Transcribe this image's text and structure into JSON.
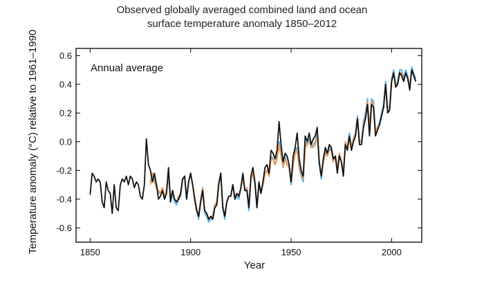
{
  "chart_data": {
    "type": "line",
    "title_line1": "Observed globally averaged combined land and ocean",
    "title_line2": "surface temperature anomaly 1850–2012",
    "xlabel": "Year",
    "ylabel": "Temperature anomaly (°C) relative to 1961–1990",
    "annotation": "Annual average",
    "xlim": [
      1843,
      2015
    ],
    "ylim": [
      -0.7,
      0.65
    ],
    "x_ticks": [
      1850,
      1900,
      1950,
      2000
    ],
    "y_ticks": [
      -0.6,
      -0.4,
      -0.2,
      0.0,
      0.2,
      0.4,
      0.6
    ],
    "y_tick_labels": [
      "-0.6",
      "-0.4",
      "-0.2",
      "0.0",
      "0.2",
      "0.4",
      "0.6"
    ],
    "grid": false,
    "series": [
      {
        "color": "#5ab4e5",
        "x_start": 1880,
        "values": [
          -0.28,
          -0.22,
          -0.26,
          -0.3,
          -0.36,
          -0.36,
          -0.34,
          -0.4,
          -0.36,
          -0.2,
          -0.42,
          -0.36,
          -0.42,
          -0.44,
          -0.4,
          -0.38,
          -0.26,
          -0.24,
          -0.4,
          -0.28,
          -0.22,
          -0.3,
          -0.4,
          -0.48,
          -0.54,
          -0.42,
          -0.34,
          -0.5,
          -0.52,
          -0.56,
          -0.54,
          -0.54,
          -0.46,
          -0.44,
          -0.28,
          -0.22,
          -0.46,
          -0.54,
          -0.42,
          -0.38,
          -0.38,
          -0.3,
          -0.4,
          -0.38,
          -0.4,
          -0.32,
          -0.24,
          -0.34,
          -0.34,
          -0.48,
          -0.26,
          -0.22,
          -0.3,
          -0.46,
          -0.3,
          -0.36,
          -0.3,
          -0.22,
          -0.2,
          -0.24,
          -0.1,
          -0.12,
          -0.16,
          -0.1,
          0.0,
          -0.08,
          -0.18,
          -0.1,
          -0.16,
          -0.18,
          -0.3,
          -0.16,
          -0.06,
          -0.04,
          -0.18,
          -0.24,
          -0.28,
          -0.02,
          0.0,
          0.02,
          -0.04,
          -0.02,
          0.0,
          0.06,
          -0.16,
          -0.26,
          -0.14,
          -0.06,
          -0.1,
          -0.04,
          -0.06,
          -0.14,
          -0.1,
          -0.2,
          -0.08,
          -0.14,
          -0.22,
          0.0,
          -0.04,
          0.06,
          -0.04,
          0.02,
          0.06,
          0.18,
          0.0,
          0.0,
          0.14,
          0.2,
          0.3,
          0.08,
          0.3,
          0.28,
          0.06,
          0.1,
          0.14,
          0.2,
          0.26,
          0.42,
          0.24,
          0.24,
          0.44,
          0.5,
          0.4,
          0.42,
          0.5,
          0.5,
          0.44,
          0.5,
          0.46,
          0.38,
          0.52,
          0.48,
          0.44
        ],
        "note": "not printed"
      },
      {
        "color": "#e8985a",
        "x_start": 1880,
        "values": [
          -0.3,
          -0.22,
          -0.28,
          -0.32,
          -0.34,
          -0.36,
          -0.32,
          -0.38,
          -0.34,
          -0.22,
          -0.4,
          -0.34,
          -0.4,
          -0.42,
          -0.38,
          -0.36,
          -0.26,
          -0.24,
          -0.38,
          -0.28,
          -0.22,
          -0.3,
          -0.38,
          -0.46,
          -0.52,
          -0.4,
          -0.32,
          -0.48,
          -0.5,
          -0.54,
          -0.52,
          -0.52,
          -0.44,
          -0.42,
          -0.28,
          -0.24,
          -0.44,
          -0.52,
          -0.42,
          -0.38,
          -0.38,
          -0.3,
          -0.38,
          -0.36,
          -0.38,
          -0.32,
          -0.26,
          -0.34,
          -0.32,
          -0.44,
          -0.26,
          -0.22,
          -0.3,
          -0.44,
          -0.3,
          -0.34,
          -0.3,
          -0.22,
          -0.2,
          -0.24,
          -0.12,
          -0.12,
          -0.16,
          -0.12,
          -0.02,
          -0.1,
          -0.18,
          -0.12,
          -0.16,
          -0.18,
          -0.28,
          -0.16,
          -0.08,
          -0.06,
          -0.18,
          -0.22,
          -0.26,
          -0.04,
          -0.02,
          0.0,
          -0.04,
          -0.04,
          -0.02,
          0.04,
          -0.14,
          -0.24,
          -0.14,
          -0.08,
          -0.1,
          -0.06,
          -0.06,
          -0.14,
          -0.1,
          -0.18,
          -0.08,
          -0.14,
          -0.2,
          0.0,
          -0.04,
          0.04,
          -0.04,
          0.02,
          0.04,
          0.16,
          0.0,
          0.0,
          0.12,
          0.18,
          0.28,
          0.08,
          0.28,
          0.26,
          0.06,
          0.1,
          0.12,
          0.18,
          0.24,
          0.4,
          0.22,
          0.22,
          0.42,
          0.48,
          0.4,
          0.4,
          0.48,
          0.48,
          0.42,
          0.48,
          0.44,
          0.38,
          0.5,
          0.46,
          0.42
        ]
      },
      {
        "color": "#111111",
        "x_start": 1850,
        "values": [
          -0.37,
          -0.22,
          -0.24,
          -0.28,
          -0.26,
          -0.28,
          -0.42,
          -0.46,
          -0.28,
          -0.34,
          -0.36,
          -0.5,
          -0.3,
          -0.46,
          -0.48,
          -0.3,
          -0.26,
          -0.28,
          -0.24,
          -0.3,
          -0.24,
          -0.26,
          -0.32,
          -0.28,
          -0.3,
          -0.38,
          -0.4,
          -0.3,
          0.02,
          -0.16,
          -0.2,
          -0.28,
          -0.22,
          -0.3,
          -0.4,
          -0.38,
          -0.34,
          -0.4,
          -0.36,
          -0.18,
          -0.42,
          -0.34,
          -0.4,
          -0.42,
          -0.4,
          -0.36,
          -0.26,
          -0.24,
          -0.4,
          -0.28,
          -0.22,
          -0.3,
          -0.4,
          -0.48,
          -0.52,
          -0.42,
          -0.34,
          -0.48,
          -0.5,
          -0.54,
          -0.52,
          -0.54,
          -0.46,
          -0.44,
          -0.3,
          -0.22,
          -0.46,
          -0.52,
          -0.42,
          -0.38,
          -0.38,
          -0.3,
          -0.4,
          -0.36,
          -0.38,
          -0.32,
          -0.22,
          -0.34,
          -0.34,
          -0.46,
          -0.24,
          -0.18,
          -0.28,
          -0.46,
          -0.28,
          -0.36,
          -0.28,
          -0.18,
          -0.16,
          -0.22,
          -0.06,
          -0.08,
          -0.12,
          -0.06,
          0.14,
          -0.02,
          -0.14,
          -0.08,
          -0.1,
          -0.16,
          -0.28,
          -0.1,
          -0.04,
          0.06,
          -0.12,
          -0.2,
          -0.24,
          0.04,
          0.0,
          0.06,
          -0.02,
          0.02,
          0.04,
          0.1,
          -0.14,
          -0.24,
          -0.12,
          -0.04,
          -0.08,
          -0.02,
          -0.04,
          -0.12,
          -0.1,
          -0.22,
          -0.1,
          -0.14,
          -0.24,
          -0.02,
          -0.06,
          0.04,
          -0.06,
          0.0,
          0.04,
          0.16,
          -0.02,
          -0.02,
          0.1,
          0.16,
          0.26,
          0.04,
          0.26,
          0.24,
          0.04,
          0.08,
          0.12,
          0.18,
          0.24,
          0.4,
          0.2,
          0.22,
          0.42,
          0.48,
          0.38,
          0.4,
          0.48,
          0.46,
          0.42,
          0.48,
          0.44,
          0.36,
          0.5,
          0.46,
          0.42
        ]
      }
    ]
  }
}
